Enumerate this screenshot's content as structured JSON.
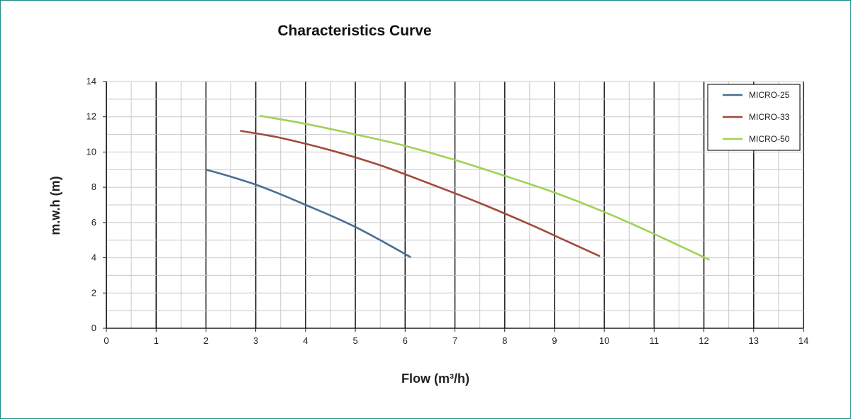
{
  "chart_data": {
    "type": "line",
    "title": "Characteristics Curve",
    "xlabel": "Flow (m³/h)",
    "ylabel": "m.w.h (m)",
    "xlim": [
      0,
      14
    ],
    "ylim": [
      0,
      14
    ],
    "x_ticks": [
      "0",
      "1",
      "2",
      "3",
      "4",
      "5",
      "6",
      "7",
      "8",
      "9",
      "10",
      "11",
      "12",
      "13",
      "14"
    ],
    "y_ticks": [
      "0",
      "2",
      "4",
      "6",
      "8",
      "10",
      "12",
      "14"
    ],
    "grid": true,
    "legend_position": "top-right",
    "series": [
      {
        "name": "MICRO-25",
        "color": "#4a6f93",
        "points": [
          [
            2.0,
            9.0
          ],
          [
            2.5,
            8.6
          ],
          [
            3.0,
            8.15
          ],
          [
            3.5,
            7.6
          ],
          [
            4.0,
            7.0
          ],
          [
            4.5,
            6.4
          ],
          [
            5.0,
            5.75
          ],
          [
            5.5,
            5.0
          ],
          [
            6.1,
            4.05
          ]
        ]
      },
      {
        "name": "MICRO-33",
        "color": "#a04a3c",
        "points": [
          [
            2.7,
            11.2
          ],
          [
            3.5,
            10.8
          ],
          [
            4.5,
            10.1
          ],
          [
            5.5,
            9.25
          ],
          [
            6.5,
            8.2
          ],
          [
            7.5,
            7.1
          ],
          [
            8.5,
            5.9
          ],
          [
            9.2,
            5.0
          ],
          [
            9.9,
            4.1
          ]
        ]
      },
      {
        "name": "MICRO-50",
        "color": "#9fd256",
        "points": [
          [
            3.1,
            12.05
          ],
          [
            4.0,
            11.6
          ],
          [
            5.0,
            11.0
          ],
          [
            6.0,
            10.35
          ],
          [
            7.0,
            9.55
          ],
          [
            8.0,
            8.65
          ],
          [
            9.0,
            7.7
          ],
          [
            10.0,
            6.6
          ],
          [
            11.0,
            5.35
          ],
          [
            12.1,
            3.9
          ]
        ]
      }
    ]
  }
}
